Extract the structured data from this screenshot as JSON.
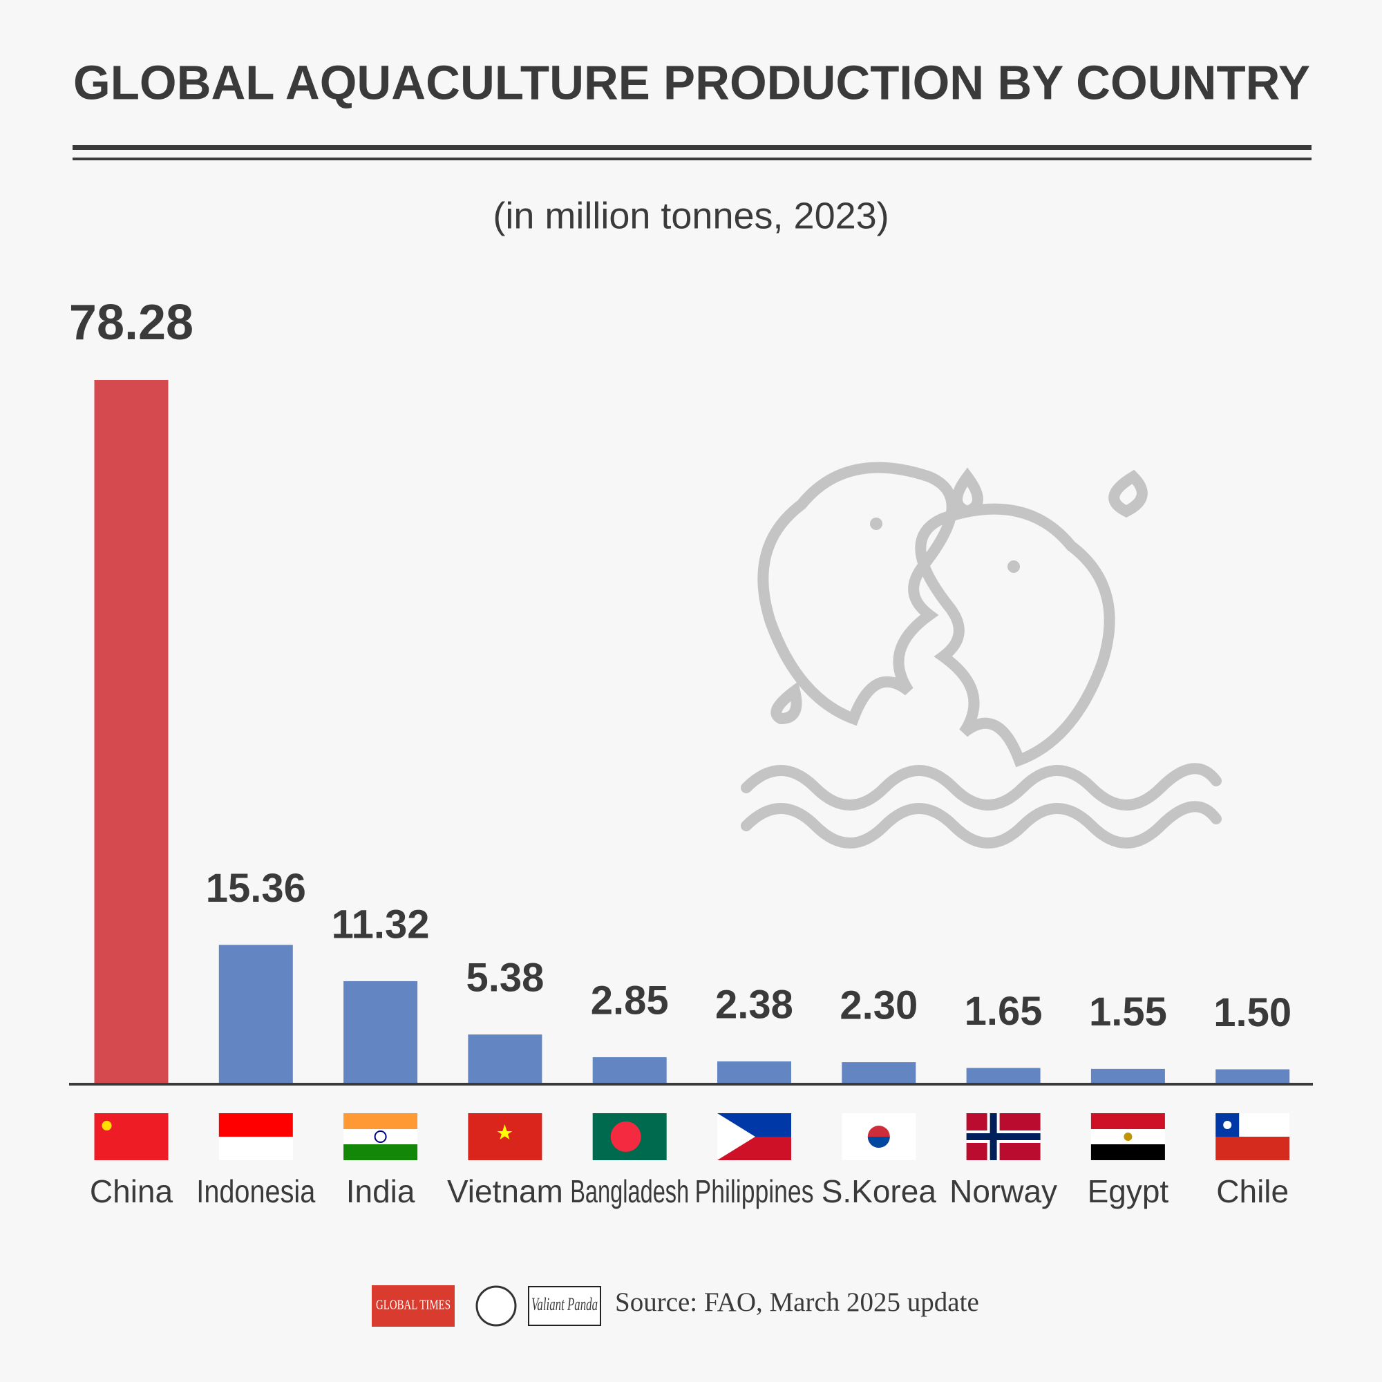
{
  "chart_data": {
    "type": "bar",
    "title": "GLOBAL AQUACULTURE PRODUCTION BY COUNTRY",
    "subtitle": "(in million tonnes, 2023)",
    "categories": [
      "China",
      "Indonesia",
      "India",
      "Vietnam",
      "Bangladesh",
      "Philippines",
      "S.Korea",
      "Norway",
      "Egypt",
      "Chile"
    ],
    "values": [
      78.28,
      15.36,
      11.32,
      5.38,
      2.85,
      2.38,
      2.3,
      1.65,
      1.55,
      1.5
    ],
    "value_labels": [
      "78.28",
      "15.36",
      "11.32",
      "5.38",
      "2.85",
      "2.38",
      "2.30",
      "1.65",
      "1.55",
      "1.50"
    ],
    "colors": [
      "#d44a4f",
      "#6385c2",
      "#6385c2",
      "#6385c2",
      "#6385c2",
      "#6385c2",
      "#6385c2",
      "#6385c2",
      "#6385c2",
      "#6385c2"
    ]
  },
  "footer": {
    "logos": [
      "GLOBAL TIMES",
      "Valiant Panda"
    ],
    "source": "Source: FAO, March 2025 update"
  }
}
